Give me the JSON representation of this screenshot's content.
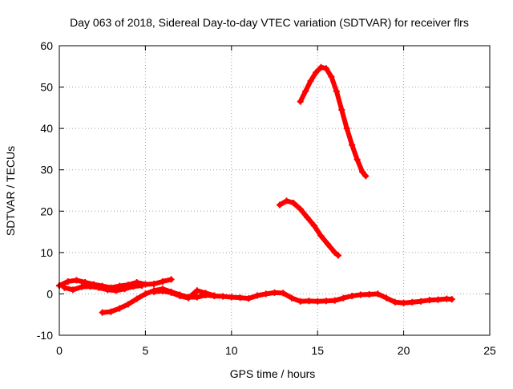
{
  "chart_data": {
    "type": "scatter",
    "title": "Day 063 of 2018, Sidereal Day-to-day VTEC variation (SDTVAR) for receiver flrs",
    "xlabel": "GPS time / hours",
    "ylabel": "SDTVAR / TECUs",
    "xlim": [
      0,
      25
    ],
    "ylim": [
      -10,
      60
    ],
    "xticks": [
      "0",
      "5",
      "10",
      "15",
      "20",
      "25"
    ],
    "yticks": [
      "-10",
      "0",
      "10",
      "20",
      "30",
      "40",
      "50",
      "60"
    ],
    "grid": true,
    "marker": "+",
    "color": "#ff0000",
    "series": [
      {
        "x": [
          14.0,
          14.3,
          14.6,
          14.9,
          15.2,
          15.5,
          15.8,
          16.1,
          16.4,
          16.7,
          17.0,
          17.3,
          17.6,
          17.8
        ],
        "y": [
          46.5,
          49.0,
          51.5,
          53.5,
          54.8,
          54.5,
          52.5,
          49.0,
          44.5,
          40.0,
          36.0,
          32.5,
          29.5,
          28.5
        ]
      },
      {
        "x": [
          12.8,
          13.2,
          13.6,
          14.0,
          14.4,
          14.8,
          15.2,
          15.6,
          16.0,
          16.2
        ],
        "y": [
          21.5,
          22.5,
          22.0,
          20.5,
          18.5,
          16.5,
          14.0,
          12.0,
          10.0,
          9.3
        ]
      },
      {
        "x": [
          0.0,
          0.5,
          1.0,
          1.5,
          2.0,
          2.5,
          3.0,
          3.5,
          4.0,
          4.5,
          5.0,
          5.5,
          6.0,
          6.5
        ],
        "y": [
          2.0,
          3.0,
          3.3,
          2.8,
          2.3,
          1.9,
          1.5,
          1.9,
          2.2,
          2.8,
          2.3,
          2.4,
          3.0,
          3.5
        ]
      },
      {
        "x": [
          0.3,
          0.8,
          1.3,
          1.8,
          2.3,
          2.8,
          3.3,
          3.8,
          4.3,
          4.8
        ],
        "y": [
          1.5,
          1.0,
          1.7,
          1.8,
          1.5,
          1.0,
          0.8,
          1.2,
          1.8,
          2.0
        ]
      },
      {
        "x": [
          2.5,
          3.0,
          3.5,
          4.0,
          4.5,
          5.0,
          5.5,
          6.0,
          6.5,
          7.0,
          7.5,
          8.0,
          8.5,
          9.0,
          9.5,
          10.0,
          10.5,
          11.0,
          11.5,
          12.0,
          12.5,
          13.0,
          13.5,
          14.0,
          14.5,
          15.0,
          15.5,
          16.0,
          16.5,
          17.0,
          17.5,
          18.0,
          18.5,
          19.0,
          19.5,
          20.0,
          20.5,
          21.0,
          21.5,
          22.0,
          22.5,
          22.8
        ],
        "y": [
          -4.5,
          -4.3,
          -3.5,
          -2.5,
          -1.2,
          0.0,
          0.8,
          1.2,
          0.5,
          -0.2,
          -0.8,
          -0.8,
          -0.3,
          -0.5,
          -0.6,
          -0.8,
          -0.9,
          -1.1,
          -0.4,
          0.0,
          0.3,
          0.2,
          -1.0,
          -1.8,
          -1.7,
          -1.8,
          -1.7,
          -1.6,
          -1.0,
          -0.5,
          -0.2,
          -0.1,
          0.0,
          -1.0,
          -2.0,
          -2.2,
          -2.0,
          -1.8,
          -1.5,
          -1.4,
          -1.2,
          -1.3
        ]
      },
      {
        "x": [
          5.5,
          6.0,
          6.5,
          7.0,
          7.5,
          8.0,
          8.5,
          9.0
        ],
        "y": [
          0.5,
          0.7,
          0.3,
          -0.5,
          -1.0,
          0.8,
          0.2,
          -0.4
        ]
      }
    ]
  }
}
